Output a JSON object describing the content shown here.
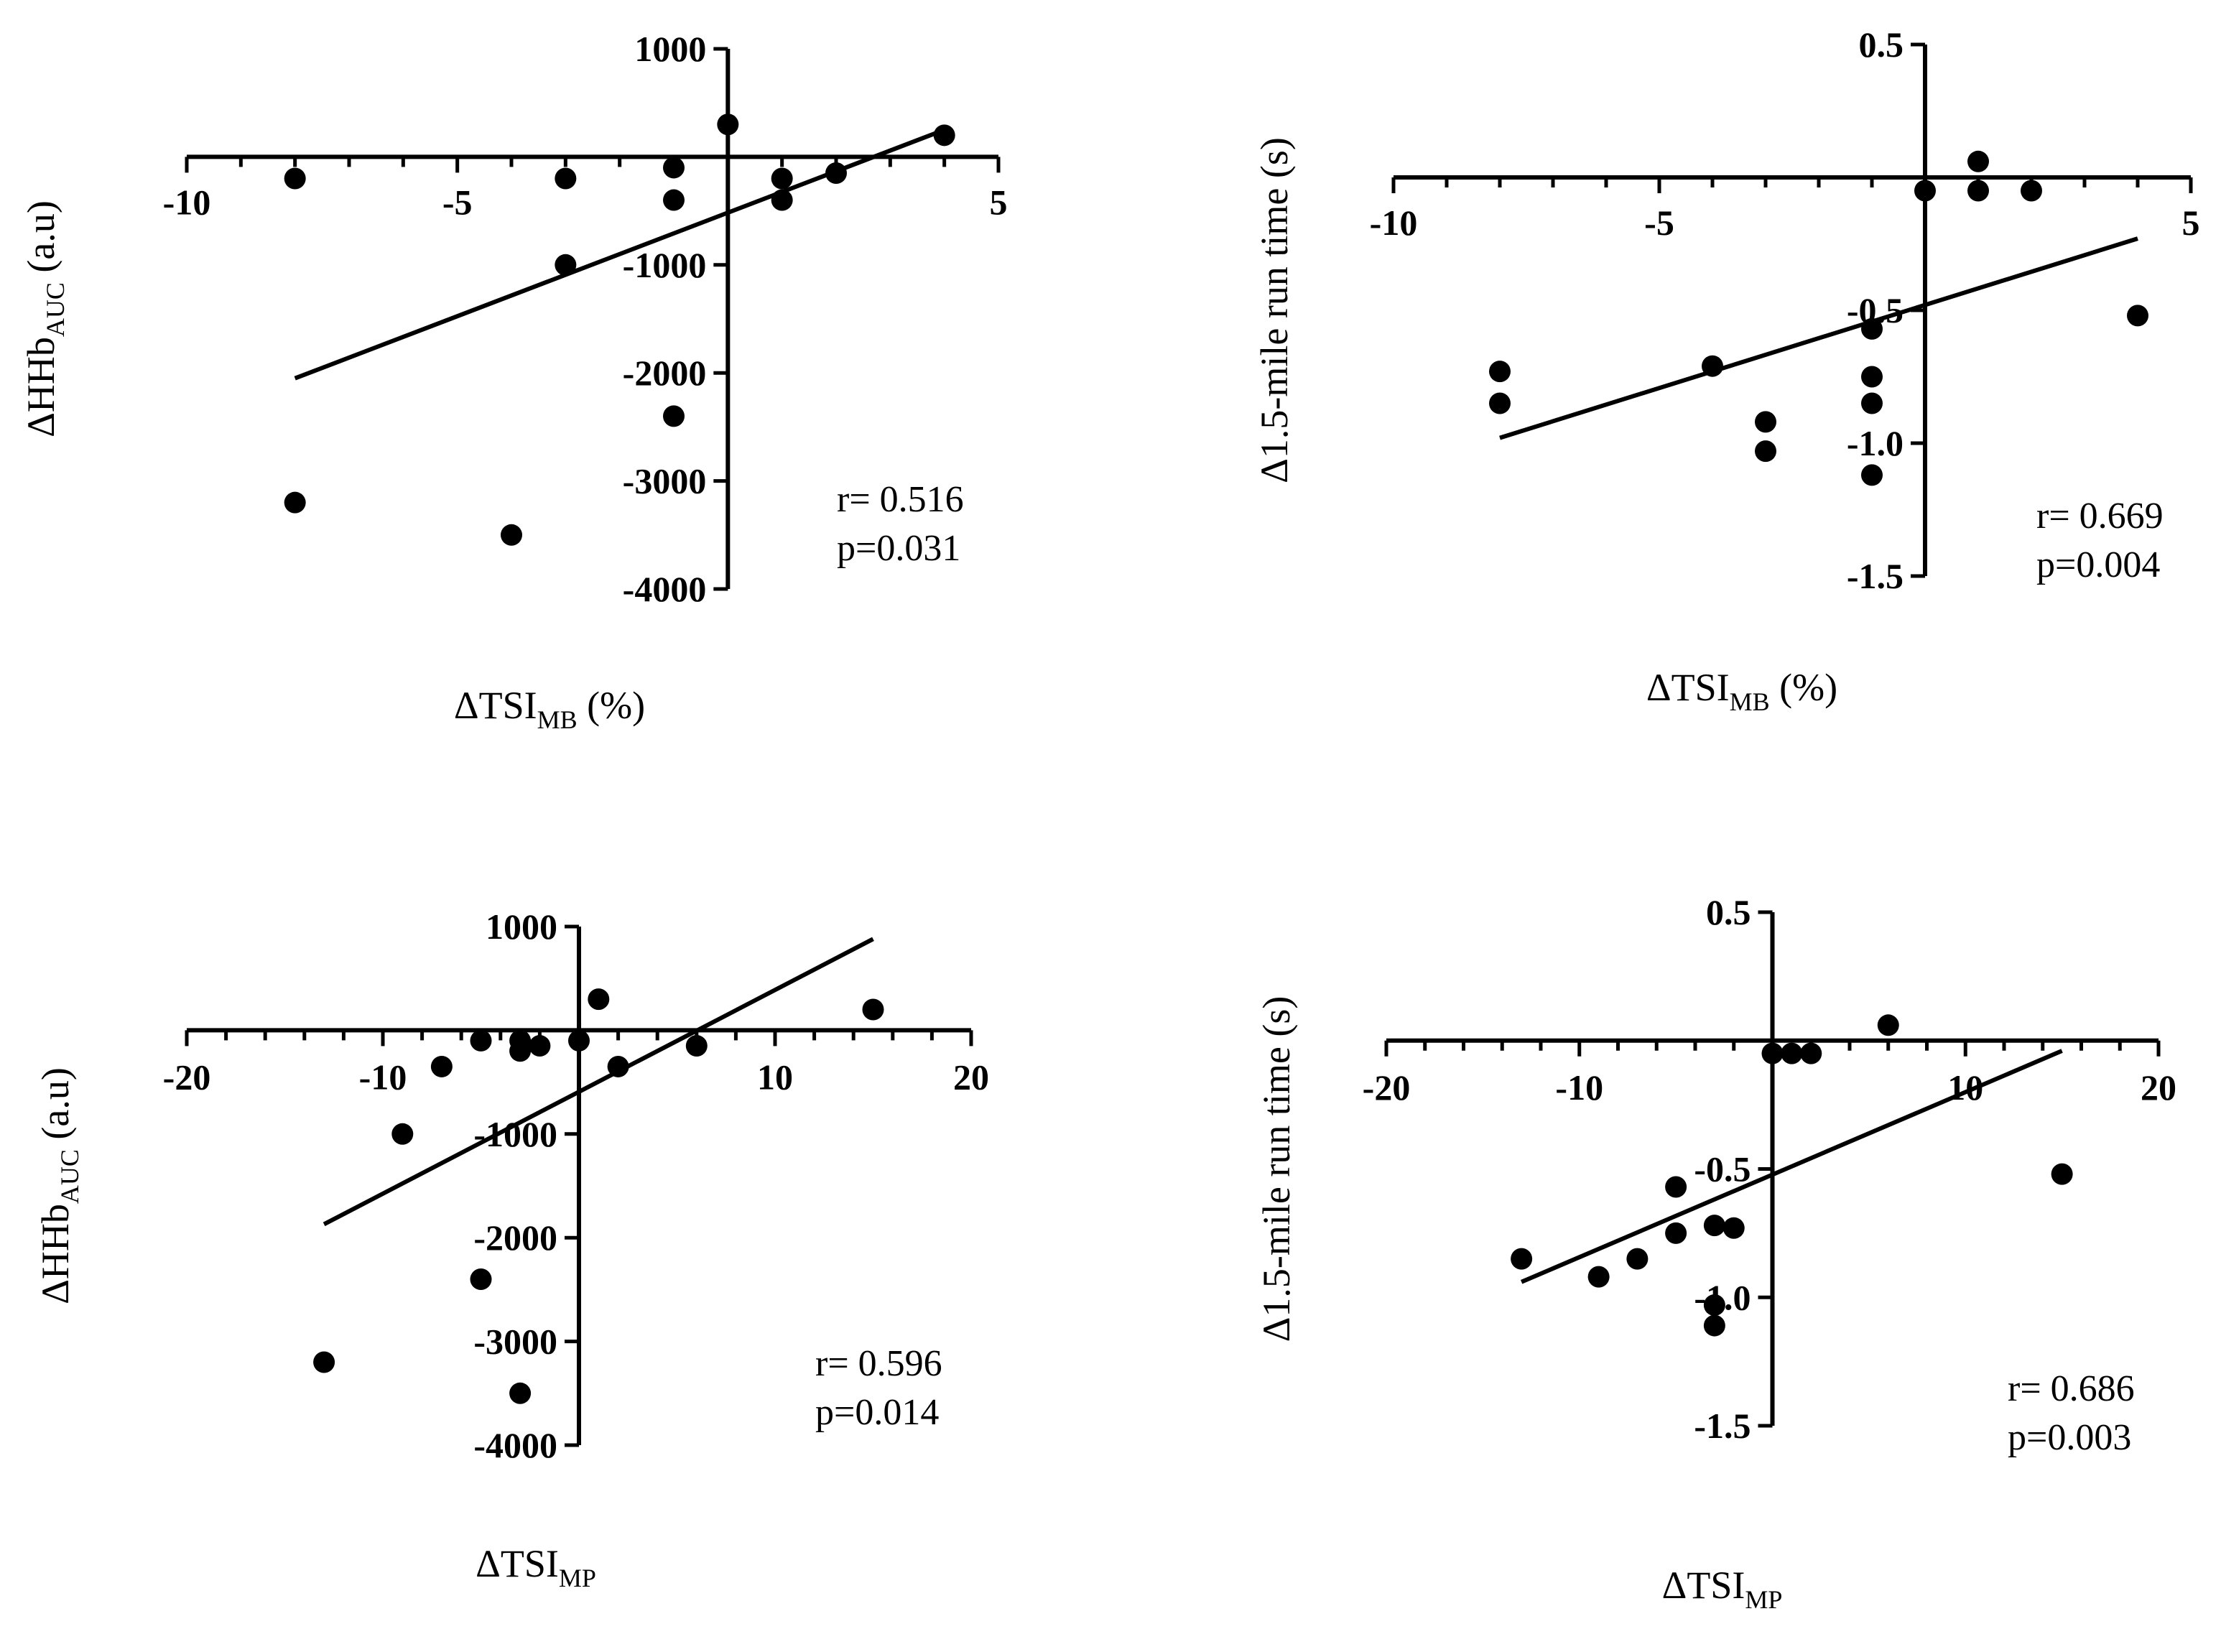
{
  "chart_data": [
    {
      "type": "scatter",
      "xlabel": "ΔTSI",
      "xlabel_sub": "MB",
      "xlabel_suffix": " (%)",
      "ylabel": "ΔHHb",
      "ylabel_sub": "AUC",
      "ylabel_suffix": " (a.u)",
      "xlim": [
        -10,
        5
      ],
      "ylim": [
        -4000,
        1000
      ],
      "x_ticks": [
        -10,
        -5,
        5
      ],
      "x_tick_labels": [
        "-10",
        "-5",
        "5"
      ],
      "y_ticks": [
        1000,
        -1000,
        -2000,
        -3000,
        -4000
      ],
      "y_tick_labels": [
        "1000",
        "-1000",
        "-2000",
        "-3000",
        "-4000"
      ],
      "x_minor_step": 1,
      "y_minor_step": 1000,
      "points": [
        [
          -8,
          -200
        ],
        [
          -8,
          -3200
        ],
        [
          -3,
          -200
        ],
        [
          -3,
          -1000
        ],
        [
          -4,
          -3500
        ],
        [
          -1,
          -100
        ],
        [
          -1,
          -400
        ],
        [
          -1,
          -2400
        ],
        [
          0,
          300
        ],
        [
          1,
          -200
        ],
        [
          1,
          -400
        ],
        [
          2,
          -150
        ],
        [
          4,
          200
        ]
      ],
      "fit": [
        [
          -8,
          -2050
        ],
        [
          4,
          250
        ]
      ],
      "r_text": "r= 0.516",
      "p_text": "p=0.031"
    },
    {
      "type": "scatter",
      "xlabel": "ΔTSI",
      "xlabel_sub": "MB",
      "xlabel_suffix": " (%)",
      "ylabel": "Δ1.5-mile run time (s)",
      "ylabel_sub": "",
      "ylabel_suffix": "",
      "xlim": [
        -10,
        5
      ],
      "ylim": [
        -1.5,
        0.5
      ],
      "x_ticks": [
        -10,
        -5,
        5
      ],
      "x_tick_labels": [
        "-10",
        "-5",
        "5"
      ],
      "y_ticks": [
        0.5,
        -0.5,
        -1.0,
        -1.5
      ],
      "y_tick_labels": [
        "0.5",
        "-0.5",
        "-1.0",
        "-1.5"
      ],
      "x_minor_step": 1,
      "y_minor_step": 0.5,
      "points": [
        [
          -8,
          -0.73
        ],
        [
          -8,
          -0.85
        ],
        [
          -4,
          -0.71
        ],
        [
          -3,
          -0.92
        ],
        [
          -3,
          -1.03
        ],
        [
          -1,
          -0.57
        ],
        [
          -1,
          -0.75
        ],
        [
          -1,
          -0.85
        ],
        [
          -1,
          -1.12
        ],
        [
          0,
          -0.05
        ],
        [
          1,
          0.06
        ],
        [
          1,
          -0.05
        ],
        [
          2,
          -0.05
        ],
        [
          4,
          -0.52
        ]
      ],
      "fit": [
        [
          -8,
          -0.98
        ],
        [
          4,
          -0.23
        ]
      ],
      "r_text": "r= 0.669",
      "p_text": "p=0.004"
    },
    {
      "type": "scatter",
      "xlabel": "ΔTSI",
      "xlabel_sub": "MP",
      "xlabel_suffix": "",
      "ylabel": "ΔHHb",
      "ylabel_sub": "AUC",
      "ylabel_suffix": " (a.u)",
      "xlim": [
        -20,
        20
      ],
      "ylim": [
        -4000,
        1000
      ],
      "x_ticks": [
        -20,
        -10,
        10,
        20
      ],
      "x_tick_labels": [
        "-20",
        "-10",
        "10",
        "20"
      ],
      "y_ticks": [
        1000,
        -1000,
        -2000,
        -3000,
        -4000
      ],
      "y_tick_labels": [
        "1000",
        "-1000",
        "-2000",
        "-3000",
        "-4000"
      ],
      "x_minor_step": 2,
      "y_minor_step": 1000,
      "points": [
        [
          -13,
          -3200
        ],
        [
          -9,
          -1000
        ],
        [
          -7,
          -350
        ],
        [
          -5,
          -100
        ],
        [
          -5,
          -2400
        ],
        [
          -3,
          -100
        ],
        [
          -3,
          -200
        ],
        [
          -3,
          -3500
        ],
        [
          -2,
          -150
        ],
        [
          0,
          -100
        ],
        [
          1,
          300
        ],
        [
          2,
          -350
        ],
        [
          6,
          -150
        ],
        [
          15,
          200
        ]
      ],
      "fit": [
        [
          -13,
          -1870
        ],
        [
          15,
          880
        ]
      ],
      "r_text": "r= 0.596",
      "p_text": "p=0.014"
    },
    {
      "type": "scatter",
      "xlabel": "ΔTSI",
      "xlabel_sub": "MP",
      "xlabel_suffix": "",
      "ylabel": "Δ1.5-mile run time (s)",
      "ylabel_sub": "",
      "ylabel_suffix": "",
      "xlim": [
        -20,
        20
      ],
      "ylim": [
        -1.5,
        0.5
      ],
      "x_ticks": [
        -20,
        -10,
        10,
        20
      ],
      "x_tick_labels": [
        "-20",
        "-10",
        "10",
        "20"
      ],
      "y_ticks": [
        0.5,
        -0.5,
        -1.0,
        -1.5
      ],
      "y_tick_labels": [
        "0.5",
        "-0.5",
        "-1.0",
        "-1.5"
      ],
      "x_minor_step": 2,
      "y_minor_step": 0.5,
      "points": [
        [
          -13,
          -0.85
        ],
        [
          -9,
          -0.92
        ],
        [
          -7,
          -0.85
        ],
        [
          -5,
          -0.57
        ],
        [
          -5,
          -0.75
        ],
        [
          -3,
          -0.72
        ],
        [
          -3,
          -1.03
        ],
        [
          -3,
          -1.11
        ],
        [
          -2,
          -0.73
        ],
        [
          0,
          -0.05
        ],
        [
          1,
          -0.05
        ],
        [
          2,
          -0.05
        ],
        [
          6,
          0.06
        ],
        [
          15,
          -0.52
        ]
      ],
      "fit": [
        [
          -13,
          -0.94
        ],
        [
          15,
          -0.04
        ]
      ],
      "r_text": "r= 0.686",
      "p_text": "p=0.003"
    }
  ]
}
